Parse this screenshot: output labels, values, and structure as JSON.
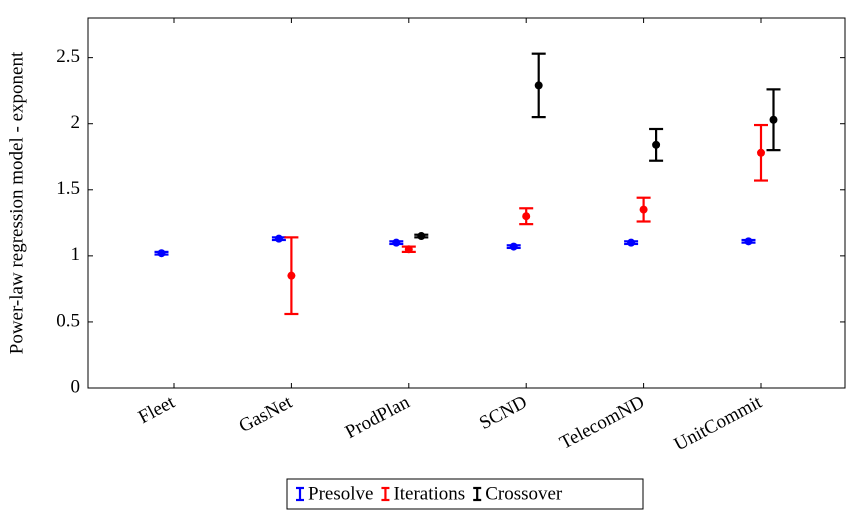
{
  "chart_data": {
    "type": "errorbar",
    "y_label": "Power-law regression model - exponent",
    "categories": [
      "Fleet",
      "GasNet",
      "ProdPlan",
      "SCND",
      "TelecomND",
      "UnitCommit"
    ],
    "ylim": [
      0,
      2.8
    ],
    "yticks": [
      0,
      0.5,
      1,
      1.5,
      2,
      2.5
    ],
    "legend": "bottom",
    "series": [
      {
        "name": "Presolve",
        "color": "#0000ff",
        "values": [
          1.02,
          1.13,
          1.1,
          1.07,
          1.1,
          1.11
        ],
        "errors": [
          0.01,
          0.01,
          0.01,
          0.01,
          0.01,
          0.01
        ]
      },
      {
        "name": "Iterations",
        "color": "#ff0000",
        "values": [
          null,
          0.85,
          1.05,
          1.3,
          1.35,
          1.78
        ],
        "errors": [
          null,
          0.29,
          0.02,
          0.06,
          0.09,
          0.21
        ]
      },
      {
        "name": "Crossover",
        "color": "#000000",
        "values": [
          null,
          null,
          1.15,
          2.29,
          1.84,
          2.03
        ],
        "errors": [
          null,
          null,
          0.01,
          0.24,
          0.12,
          0.23
        ]
      }
    ]
  }
}
